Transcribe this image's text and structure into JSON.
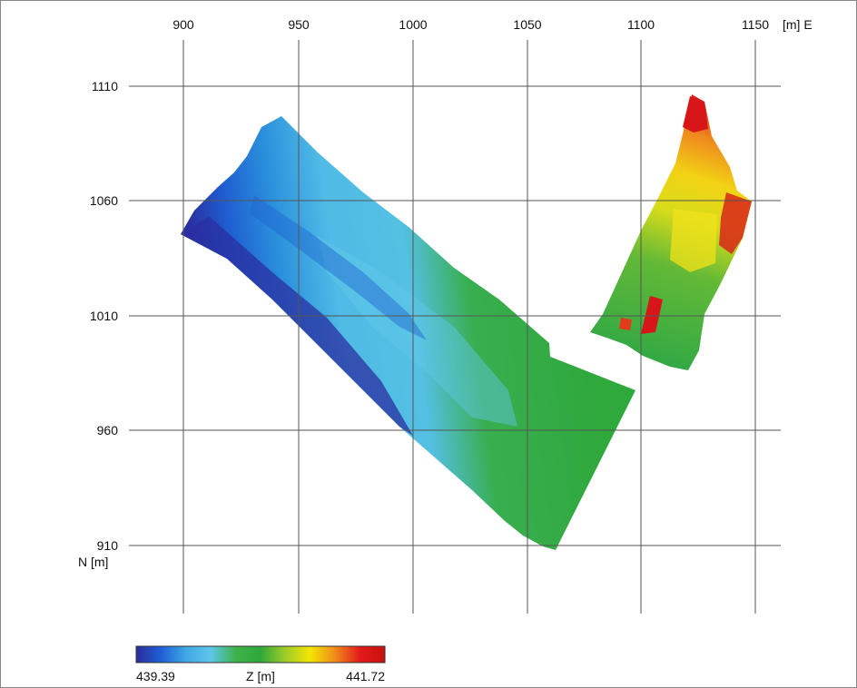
{
  "map": {
    "x_axis": {
      "ticks": [
        "900",
        "950",
        "1000",
        "1050",
        "1100",
        "1150"
      ],
      "unit_label": "[m] E"
    },
    "y_axis": {
      "ticks": [
        "1110",
        "1060",
        "1010",
        "960",
        "910"
      ],
      "unit_label": "N [m]"
    },
    "colorbar": {
      "min_label": "439.39",
      "max_label": "441.72",
      "title": "Z [m]",
      "colors": [
        "#2a2c9a",
        "#1f5fd6",
        "#3fa8e4",
        "#5ec6ea",
        "#3fb24a",
        "#2fa83a",
        "#9fcc2a",
        "#f4e600",
        "#f08a1c",
        "#e21a1a",
        "#c81010"
      ]
    },
    "palette": {
      "deep_blue": "#2a2fa0",
      "blue": "#1f62cf",
      "light_blue": "#52bde6",
      "green": "#33ab42",
      "yellow": "#f0e41a",
      "orange": "#ef8a1e",
      "red": "#d8161a",
      "grid": "#555555"
    }
  }
}
